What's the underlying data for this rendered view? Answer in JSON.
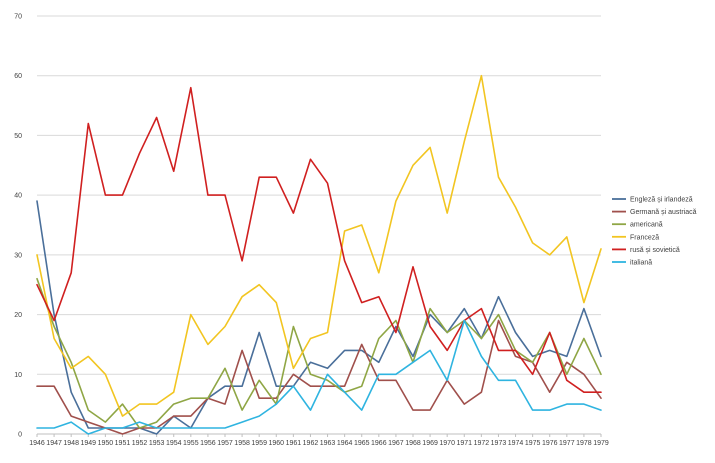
{
  "chart_data": {
    "type": "line",
    "title": "",
    "xlabel": "",
    "ylabel": "",
    "ylim": [
      0,
      70
    ],
    "yticks": [
      0,
      10,
      20,
      30,
      40,
      50,
      60,
      70
    ],
    "grid": true,
    "legend_position": "right",
    "x": [
      1946,
      1947,
      1948,
      1949,
      1950,
      1951,
      1952,
      1953,
      1954,
      1955,
      1956,
      1957,
      1958,
      1959,
      1960,
      1961,
      1962,
      1963,
      1964,
      1965,
      1966,
      1967,
      1968,
      1969,
      1970,
      1971,
      1972,
      1973,
      1974,
      1975,
      1976,
      1977,
      1978,
      1979
    ],
    "categories": [
      "1946",
      "1947",
      "1948",
      "1949",
      "1950",
      "1951",
      "1952",
      "1953",
      "1954",
      "1955",
      "1956",
      "1957",
      "1958",
      "1959",
      "1960",
      "1961",
      "1962",
      "1963",
      "1964",
      "1965",
      "1966",
      "1967",
      "1968",
      "1969",
      "1970",
      "1971",
      "1972",
      "1973",
      "1974",
      "1975",
      "1976",
      "1977",
      "1978",
      "1979"
    ],
    "series": [
      {
        "name": "Engleză și irlandeză",
        "color": "#4a6f9a",
        "values": [
          39,
          20,
          7,
          1,
          1,
          1,
          1,
          0,
          3,
          1,
          6,
          8,
          8,
          17,
          8,
          8,
          12,
          11,
          14,
          14,
          12,
          18,
          13,
          20,
          17,
          21,
          16,
          23,
          17,
          13,
          14,
          13,
          21,
          13
        ]
      },
      {
        "name": "Germană și austriacă",
        "color": "#a0504c",
        "values": [
          8,
          8,
          3,
          2,
          1,
          0,
          1,
          1,
          3,
          3,
          6,
          5,
          14,
          6,
          6,
          10,
          8,
          8,
          8,
          15,
          9,
          9,
          4,
          4,
          9,
          5,
          7,
          19,
          13,
          12,
          7,
          12,
          10,
          6
        ]
      },
      {
        "name": "americană",
        "color": "#8fa645",
        "values": [
          26,
          18,
          12,
          4,
          2,
          5,
          1,
          2,
          5,
          6,
          6,
          11,
          4,
          9,
          5,
          18,
          10,
          9,
          7,
          8,
          16,
          19,
          12,
          21,
          17,
          19,
          16,
          20,
          14,
          12,
          17,
          10,
          16,
          10
        ]
      },
      {
        "name": "Franceză",
        "color": "#f2c521",
        "values": [
          30,
          16,
          11,
          13,
          10,
          3,
          5,
          5,
          7,
          20,
          15,
          18,
          23,
          25,
          22,
          11,
          16,
          17,
          34,
          35,
          27,
          39,
          45,
          48,
          37,
          49,
          60,
          43,
          38,
          32,
          30,
          33,
          22,
          31
        ]
      },
      {
        "name": "rusă și sovietică",
        "color": "#d02020",
        "values": [
          25,
          19,
          27,
          52,
          40,
          40,
          47,
          53,
          44,
          58,
          40,
          40,
          29,
          43,
          43,
          37,
          46,
          42,
          29,
          22,
          23,
          17,
          28,
          18,
          14,
          19,
          21,
          14,
          14,
          10,
          17,
          9,
          7,
          7
        ]
      },
      {
        "name": "italiană",
        "color": "#2fb4e0",
        "values": [
          1,
          1,
          2,
          0,
          1,
          1,
          2,
          1,
          1,
          1,
          1,
          1,
          2,
          3,
          5,
          8,
          4,
          10,
          7,
          4,
          10,
          10,
          12,
          14,
          9,
          19,
          13,
          9,
          9,
          4,
          4,
          5,
          5,
          4
        ]
      }
    ]
  }
}
